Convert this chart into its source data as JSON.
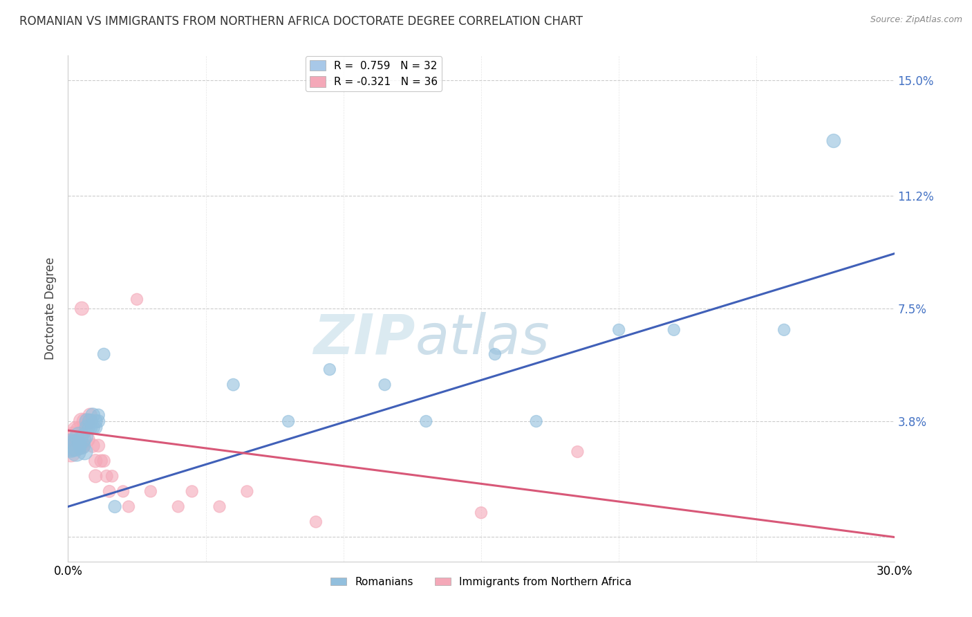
{
  "title": "ROMANIAN VS IMMIGRANTS FROM NORTHERN AFRICA DOCTORATE DEGREE CORRELATION CHART",
  "source": "Source: ZipAtlas.com",
  "ylabel": "Doctorate Degree",
  "x_min": 0.0,
  "x_max": 0.3,
  "y_min": -0.008,
  "y_max": 0.158,
  "y_ticks": [
    0.0,
    0.038,
    0.075,
    0.112,
    0.15
  ],
  "y_tick_labels": [
    "",
    "3.8%",
    "7.5%",
    "11.2%",
    "15.0%"
  ],
  "x_ticks": [
    0.0,
    0.05,
    0.1,
    0.15,
    0.2,
    0.25,
    0.3
  ],
  "x_tick_labels": [
    "0.0%",
    "",
    "",
    "",
    "",
    "",
    "30.0%"
  ],
  "legend_entries": [
    {
      "label": "R =  0.759   N = 32",
      "color": "#a8c8e8"
    },
    {
      "label": "R = -0.321   N = 36",
      "color": "#f4a8b8"
    }
  ],
  "legend_bottom": [
    "Romanians",
    "Immigrants from Northern Africa"
  ],
  "blue_color": "#92bfdd",
  "pink_color": "#f4a8b8",
  "blue_line_color": "#4060b8",
  "pink_line_color": "#d85878",
  "watermark_zip": "ZIP",
  "watermark_atlas": "atlas",
  "blue_R": 0.759,
  "blue_N": 32,
  "pink_R": -0.321,
  "pink_N": 36,
  "blue_points": [
    [
      0.001,
      0.03
    ],
    [
      0.002,
      0.03
    ],
    [
      0.003,
      0.03
    ],
    [
      0.003,
      0.028
    ],
    [
      0.004,
      0.033
    ],
    [
      0.005,
      0.032
    ],
    [
      0.005,
      0.03
    ],
    [
      0.006,
      0.033
    ],
    [
      0.006,
      0.028
    ],
    [
      0.007,
      0.038
    ],
    [
      0.007,
      0.036
    ],
    [
      0.008,
      0.038
    ],
    [
      0.008,
      0.036
    ],
    [
      0.009,
      0.04
    ],
    [
      0.009,
      0.036
    ],
    [
      0.01,
      0.038
    ],
    [
      0.01,
      0.036
    ],
    [
      0.011,
      0.038
    ],
    [
      0.011,
      0.04
    ],
    [
      0.013,
      0.06
    ],
    [
      0.017,
      0.01
    ],
    [
      0.06,
      0.05
    ],
    [
      0.08,
      0.038
    ],
    [
      0.095,
      0.055
    ],
    [
      0.115,
      0.05
    ],
    [
      0.13,
      0.038
    ],
    [
      0.155,
      0.06
    ],
    [
      0.17,
      0.038
    ],
    [
      0.2,
      0.068
    ],
    [
      0.22,
      0.068
    ],
    [
      0.26,
      0.068
    ],
    [
      0.278,
      0.13
    ]
  ],
  "blue_sizes": [
    600,
    500,
    450,
    400,
    380,
    350,
    320,
    300,
    280,
    260,
    250,
    240,
    230,
    220,
    210,
    200,
    190,
    180,
    170,
    160,
    170,
    160,
    150,
    150,
    150,
    150,
    150,
    150,
    150,
    150,
    150,
    200
  ],
  "pink_points": [
    [
      0.001,
      0.03
    ],
    [
      0.001,
      0.028
    ],
    [
      0.002,
      0.033
    ],
    [
      0.003,
      0.03
    ],
    [
      0.003,
      0.035
    ],
    [
      0.004,
      0.03
    ],
    [
      0.004,
      0.035
    ],
    [
      0.005,
      0.038
    ],
    [
      0.005,
      0.03
    ],
    [
      0.006,
      0.035
    ],
    [
      0.006,
      0.038
    ],
    [
      0.007,
      0.032
    ],
    [
      0.007,
      0.038
    ],
    [
      0.008,
      0.038
    ],
    [
      0.008,
      0.04
    ],
    [
      0.009,
      0.03
    ],
    [
      0.01,
      0.025
    ],
    [
      0.01,
      0.02
    ],
    [
      0.011,
      0.03
    ],
    [
      0.012,
      0.025
    ],
    [
      0.013,
      0.025
    ],
    [
      0.014,
      0.02
    ],
    [
      0.015,
      0.015
    ],
    [
      0.016,
      0.02
    ],
    [
      0.02,
      0.015
    ],
    [
      0.022,
      0.01
    ],
    [
      0.03,
      0.015
    ],
    [
      0.04,
      0.01
    ],
    [
      0.045,
      0.015
    ],
    [
      0.055,
      0.01
    ],
    [
      0.065,
      0.015
    ],
    [
      0.025,
      0.078
    ],
    [
      0.09,
      0.005
    ],
    [
      0.15,
      0.008
    ],
    [
      0.185,
      0.028
    ],
    [
      0.005,
      0.075
    ]
  ],
  "pink_sizes": [
    500,
    450,
    400,
    380,
    350,
    330,
    310,
    290,
    270,
    260,
    250,
    240,
    230,
    220,
    210,
    200,
    190,
    185,
    180,
    175,
    170,
    165,
    160,
    155,
    150,
    150,
    150,
    150,
    150,
    150,
    150,
    150,
    150,
    150,
    150,
    200
  ],
  "blue_line_y0": 0.01,
  "blue_line_y1": 0.093,
  "pink_line_y0": 0.035,
  "pink_line_y1": 0.0
}
